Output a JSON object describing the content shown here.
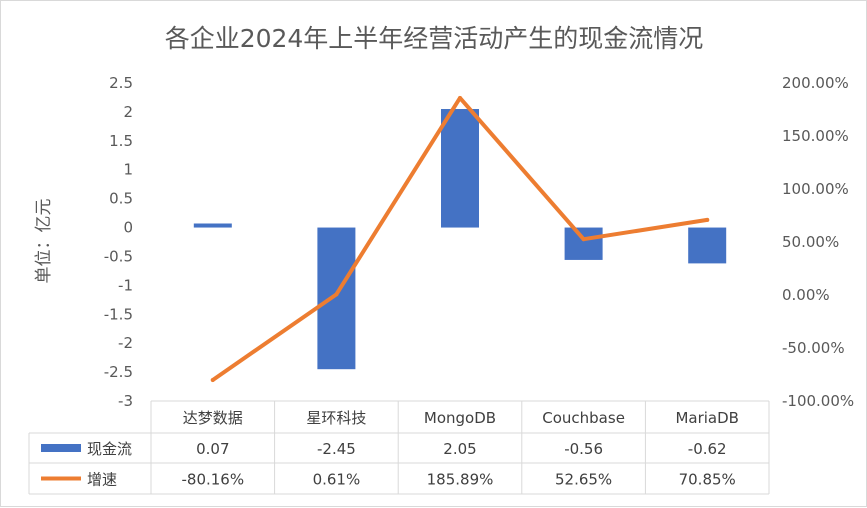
{
  "chart_data": {
    "type": "bar",
    "title": "各企业2024年上半年经营活动产生的现金流情况",
    "ylabel": "单位：亿元",
    "categories": [
      "达梦数据",
      "星环科技",
      "MongoDB",
      "Couchbase",
      "MariaDB"
    ],
    "ylim": [
      -3,
      2.5
    ],
    "y_ticks": [
      "2.5",
      "2",
      "1.5",
      "1",
      "0.5",
      "0",
      "-0.5",
      "-1",
      "-1.5",
      "-2",
      "-2.5",
      "-3"
    ],
    "y2lim": [
      -100,
      200
    ],
    "y2_ticks": [
      "200.00%",
      "150.00%",
      "100.00%",
      "50.00%",
      "0.00%",
      "-50.00%",
      "-100.00%"
    ],
    "series": [
      {
        "name": "现金流",
        "type": "bar",
        "axis": "left",
        "color": "#4472c4",
        "values": [
          0.07,
          -2.45,
          2.05,
          -0.56,
          -0.62
        ],
        "labels": [
          "0.07",
          "-2.45",
          "2.05",
          "-0.56",
          "-0.62"
        ]
      },
      {
        "name": "增速",
        "type": "line",
        "axis": "right",
        "color": "#ed7d31",
        "values": [
          -80.16,
          0.61,
          185.89,
          52.65,
          70.85
        ],
        "labels": [
          "-80.16%",
          "0.61%",
          "185.89%",
          "52.65%",
          "70.85%"
        ]
      }
    ],
    "grid": false,
    "legend": "data-table"
  }
}
